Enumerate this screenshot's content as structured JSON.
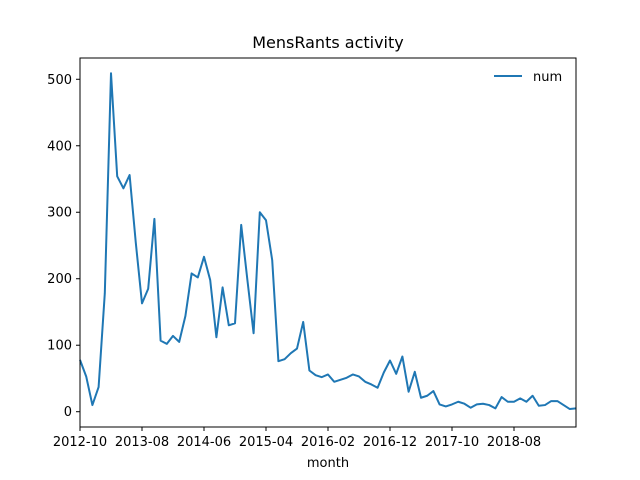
{
  "chart_data": {
    "type": "line",
    "title": "MensRants activity",
    "xlabel": "month",
    "ylabel": "",
    "ylim": [
      -23,
      532
    ],
    "yticks": [
      0,
      100,
      200,
      300,
      400,
      500
    ],
    "xticks": [
      "2012-10",
      "2013-08",
      "2014-06",
      "2015-04",
      "2016-02",
      "2016-12",
      "2017-10",
      "2018-08"
    ],
    "grid": false,
    "legend_position": "top-right",
    "color": "#1f77b4",
    "x": [
      "2012-10",
      "2012-11",
      "2012-12",
      "2013-01",
      "2013-02",
      "2013-03",
      "2013-04",
      "2013-05",
      "2013-06",
      "2013-07",
      "2013-08",
      "2013-09",
      "2013-10",
      "2013-11",
      "2013-12",
      "2014-01",
      "2014-02",
      "2014-03",
      "2014-04",
      "2014-05",
      "2014-06",
      "2014-07",
      "2014-08",
      "2014-09",
      "2014-10",
      "2014-11",
      "2014-12",
      "2015-01",
      "2015-02",
      "2015-03",
      "2015-04",
      "2015-05",
      "2015-06",
      "2015-07",
      "2015-08",
      "2015-09",
      "2015-10",
      "2015-11",
      "2015-12",
      "2016-01",
      "2016-02",
      "2016-03",
      "2016-04",
      "2016-05",
      "2016-06",
      "2016-07",
      "2016-08",
      "2016-09",
      "2016-10",
      "2016-11",
      "2016-12",
      "2017-01",
      "2017-02",
      "2017-03",
      "2017-04",
      "2017-05",
      "2017-06",
      "2017-07",
      "2017-08",
      "2017-09",
      "2017-10",
      "2017-11",
      "2017-12",
      "2018-01",
      "2018-02",
      "2018-03",
      "2018-04",
      "2018-05",
      "2018-06",
      "2018-07",
      "2018-08",
      "2018-09",
      "2018-10",
      "2018-11",
      "2018-12",
      "2019-01",
      "2019-02",
      "2019-03",
      "2019-04",
      "2019-05",
      "2019-06"
    ],
    "series": [
      {
        "name": "num",
        "values": [
          78,
          53,
          10,
          37,
          178,
          509,
          354,
          336,
          356,
          254,
          163,
          185,
          290,
          107,
          102,
          114,
          105,
          144,
          208,
          202,
          233,
          198,
          112,
          187,
          130,
          133,
          281,
          198,
          118,
          300,
          288,
          228,
          76,
          79,
          88,
          95,
          135,
          62,
          55,
          52,
          56,
          45,
          48,
          51,
          56,
          53,
          45,
          41,
          36,
          59,
          77,
          57,
          83,
          30,
          60,
          21,
          24,
          31,
          11,
          8,
          11,
          15,
          12,
          6,
          11,
          12,
          10,
          5,
          22,
          15,
          15,
          20,
          15,
          24,
          9,
          10,
          16,
          16,
          10,
          4,
          5
        ]
      }
    ]
  }
}
